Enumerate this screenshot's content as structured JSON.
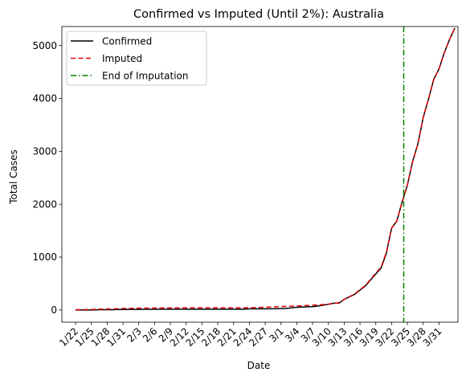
{
  "chart_data": {
    "type": "line",
    "title": "Confirmed vs Imputed (Until 2%): Australia",
    "xlabel": "Date",
    "ylabel": "Total Cases",
    "x_tick_labels": [
      "1/22",
      "1/25",
      "1/28",
      "1/31",
      "2/3",
      "2/6",
      "2/9",
      "2/12",
      "2/15",
      "2/18",
      "2/21",
      "2/24",
      "2/27",
      "3/1",
      "3/4",
      "3/7",
      "3/10",
      "3/13",
      "3/16",
      "3/19",
      "3/22",
      "3/25",
      "3/28",
      "3/31"
    ],
    "y_ticks": [
      0,
      1000,
      2000,
      3000,
      4000,
      5000
    ],
    "ylim": [
      -230,
      5360
    ],
    "xlim_index": [
      -2.6,
      72.6
    ],
    "legend_position": "top-left",
    "grid": false,
    "dates": [
      "1/22",
      "1/23",
      "1/24",
      "1/25",
      "1/26",
      "1/27",
      "1/28",
      "1/29",
      "1/30",
      "1/31",
      "2/1",
      "2/2",
      "2/3",
      "2/4",
      "2/5",
      "2/6",
      "2/7",
      "2/8",
      "2/9",
      "2/10",
      "2/11",
      "2/12",
      "2/13",
      "2/14",
      "2/15",
      "2/16",
      "2/17",
      "2/18",
      "2/19",
      "2/20",
      "2/21",
      "2/22",
      "2/23",
      "2/24",
      "2/25",
      "2/26",
      "2/27",
      "2/28",
      "2/29",
      "3/1",
      "3/2",
      "3/3",
      "3/4",
      "3/5",
      "3/6",
      "3/7",
      "3/8",
      "3/9",
      "3/10",
      "3/11",
      "3/12",
      "3/13",
      "3/14",
      "3/15",
      "3/16",
      "3/17",
      "3/18",
      "3/19",
      "3/20",
      "3/21",
      "3/22",
      "3/23",
      "3/24",
      "3/25",
      "3/26",
      "3/27",
      "3/28",
      "3/29",
      "3/30",
      "3/31",
      "4/1",
      "4/2",
      "4/3"
    ],
    "series": [
      {
        "name": "Confirmed",
        "color": "#000000",
        "style": "solid",
        "values": [
          0,
          0,
          0,
          0,
          4,
          5,
          5,
          6,
          9,
          9,
          12,
          12,
          12,
          13,
          13,
          14,
          15,
          15,
          15,
          15,
          15,
          15,
          15,
          15,
          15,
          15,
          15,
          15,
          15,
          15,
          15,
          15,
          15,
          22,
          22,
          22,
          23,
          23,
          25,
          27,
          30,
          39,
          52,
          55,
          60,
          63,
          76,
          91,
          107,
          128,
          128,
          200,
          250,
          297,
          377,
          452,
          568,
          681,
          791,
          1071,
          1549,
          1682,
          2044,
          2364,
          2810,
          3143,
          3640,
          3984,
          4361,
          4559,
          4862,
          5116,
          5330
        ]
      },
      {
        "name": "Imputed",
        "color": "#e00000",
        "style": "dashed",
        "values": [
          5,
          6,
          8,
          10,
          14,
          17,
          19,
          22,
          25,
          28,
          30,
          32,
          34,
          35,
          36,
          37,
          38,
          39,
          40,
          40,
          41,
          41,
          41,
          41,
          41,
          41,
          41,
          41,
          41,
          41,
          41,
          41,
          41,
          43,
          45,
          48,
          52,
          56,
          60,
          64,
          68,
          72,
          76,
          80,
          85,
          90,
          96,
          103,
          112,
          124,
          138,
          200,
          250,
          305,
          385,
          462,
          578,
          700,
          810,
          1090,
          1549,
          1682,
          2044,
          2364,
          2810,
          3143,
          3640,
          3984,
          4361,
          4559,
          4862,
          5116,
          5330
        ]
      }
    ],
    "vertical_line": {
      "name": "End of Imputation",
      "color": "#008000",
      "style": "dashdot",
      "x_index": 62.3
    }
  }
}
